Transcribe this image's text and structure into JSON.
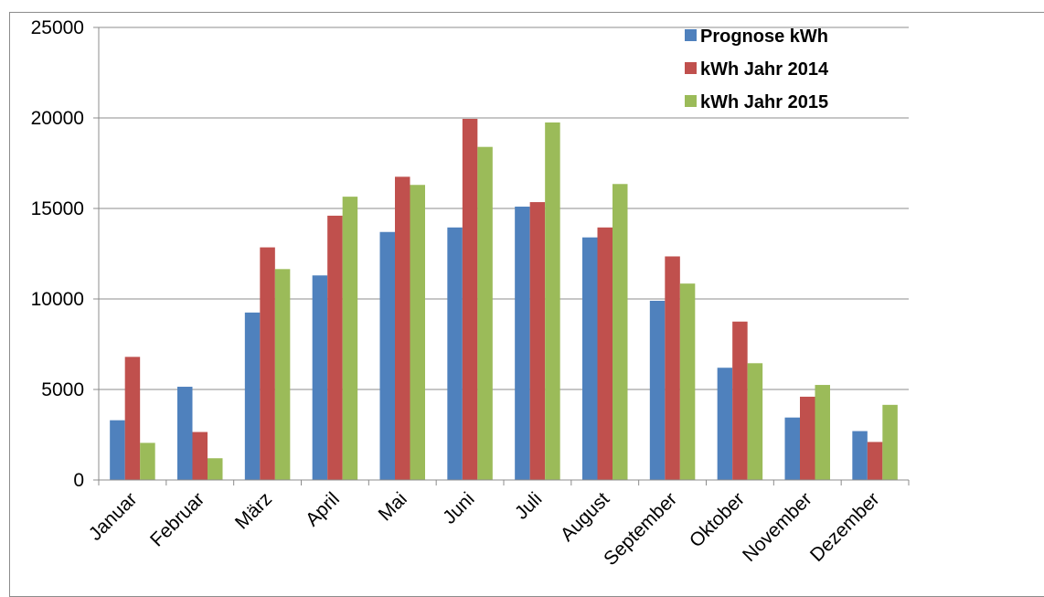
{
  "chart_data": {
    "type": "bar",
    "title": "",
    "xlabel": "",
    "ylabel": "",
    "ylim": [
      0,
      25000
    ],
    "yticks": [
      "0",
      "5000",
      "10000",
      "15000",
      "20000",
      "25000"
    ],
    "grid": "horizontal",
    "legend_position": "top-right",
    "categories": [
      "Januar",
      "Februar",
      "März",
      "April",
      "Mai",
      "Juni",
      "Juli",
      "August",
      "September",
      "Oktober",
      "November",
      "Dezember"
    ],
    "series": [
      {
        "name": "Prognose kWh",
        "color": "#4f81bd",
        "values": [
          3300,
          5150,
          9250,
          11300,
          13700,
          13950,
          15100,
          13400,
          9900,
          6200,
          3450,
          2700
        ]
      },
      {
        "name": "kWh Jahr 2014",
        "color": "#c0504d",
        "values": [
          6800,
          2650,
          12850,
          14600,
          16750,
          19950,
          15350,
          13950,
          12350,
          8750,
          4600,
          2100
        ]
      },
      {
        "name": "kWh Jahr 2015",
        "color": "#9bbb59",
        "values": [
          2050,
          1200,
          11650,
          15650,
          16300,
          18400,
          19750,
          16350,
          10850,
          6450,
          5250,
          4150
        ]
      }
    ]
  }
}
